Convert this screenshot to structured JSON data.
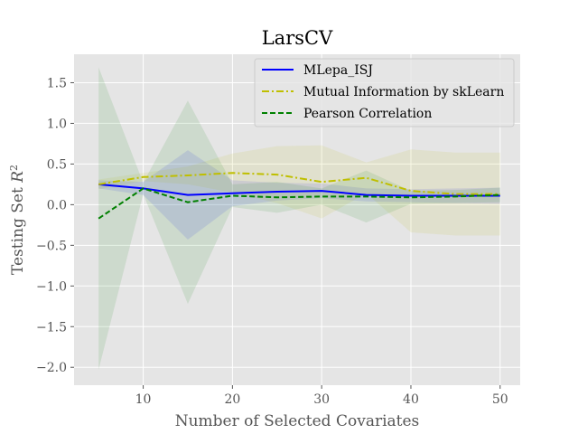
{
  "chart_data": {
    "type": "line",
    "title": "LarsCV",
    "xlabel": "Number of Selected Covariates",
    "ylabel": "Testing Set R²",
    "ylabel_main": "Testing Set ",
    "ylabel_var": "R",
    "ylabel_sup": "2",
    "xlim": [
      2.25,
      52.25
    ],
    "ylim": [
      -2.22,
      1.85
    ],
    "xticks": [
      10,
      20,
      30,
      40,
      50
    ],
    "xtick_labels": [
      "10",
      "20",
      "30",
      "40",
      "50"
    ],
    "yticks": [
      1.5,
      1.0,
      0.5,
      0.0,
      -0.5,
      -1.0,
      -1.5,
      -2.0
    ],
    "ytick_labels": [
      "1.5",
      "1.0",
      "0.5",
      "0.0",
      "−0.5",
      "−1.0",
      "−1.5",
      "−2.0"
    ],
    "grid": true,
    "legend_position": "top-right",
    "x": [
      5,
      10,
      15,
      20,
      25,
      30,
      35,
      40,
      45,
      50
    ],
    "series": [
      {
        "name": "MLepa_ISJ",
        "color": "#0000ff",
        "dash": "solid",
        "values": [
          0.25,
          0.2,
          0.12,
          0.14,
          0.16,
          0.17,
          0.12,
          0.11,
          0.11,
          0.11
        ],
        "lower": [
          0.2,
          0.12,
          -0.43,
          -0.02,
          0.05,
          0.08,
          0.04,
          0.03,
          0.02,
          0.01
        ],
        "upper": [
          0.3,
          0.28,
          0.67,
          0.3,
          0.27,
          0.26,
          0.2,
          0.19,
          0.2,
          0.21
        ]
      },
      {
        "name": "Mutual Information by skLearn",
        "color": "#bfbf00",
        "dash": "dashdot",
        "values": [
          0.25,
          0.34,
          0.36,
          0.39,
          0.37,
          0.28,
          0.33,
          0.17,
          0.13,
          0.13
        ],
        "lower": [
          0.19,
          0.29,
          0.25,
          0.15,
          0.02,
          -0.17,
          0.14,
          -0.34,
          -0.38,
          -0.38
        ],
        "upper": [
          0.31,
          0.39,
          0.47,
          0.63,
          0.72,
          0.73,
          0.52,
          0.68,
          0.64,
          0.64
        ]
      },
      {
        "name": "Pearson Correlation",
        "color": "#008000",
        "dash": "dashed",
        "values": [
          -0.17,
          0.2,
          0.03,
          0.11,
          0.09,
          0.1,
          0.1,
          0.09,
          0.1,
          0.12
        ],
        "lower": [
          -2.03,
          0.13,
          -1.22,
          -0.03,
          -0.1,
          0.0,
          -0.22,
          0.01,
          0.02,
          0.03
        ],
        "upper": [
          1.69,
          0.27,
          1.28,
          0.25,
          0.28,
          0.2,
          0.42,
          0.17,
          0.18,
          0.21
        ]
      }
    ]
  }
}
